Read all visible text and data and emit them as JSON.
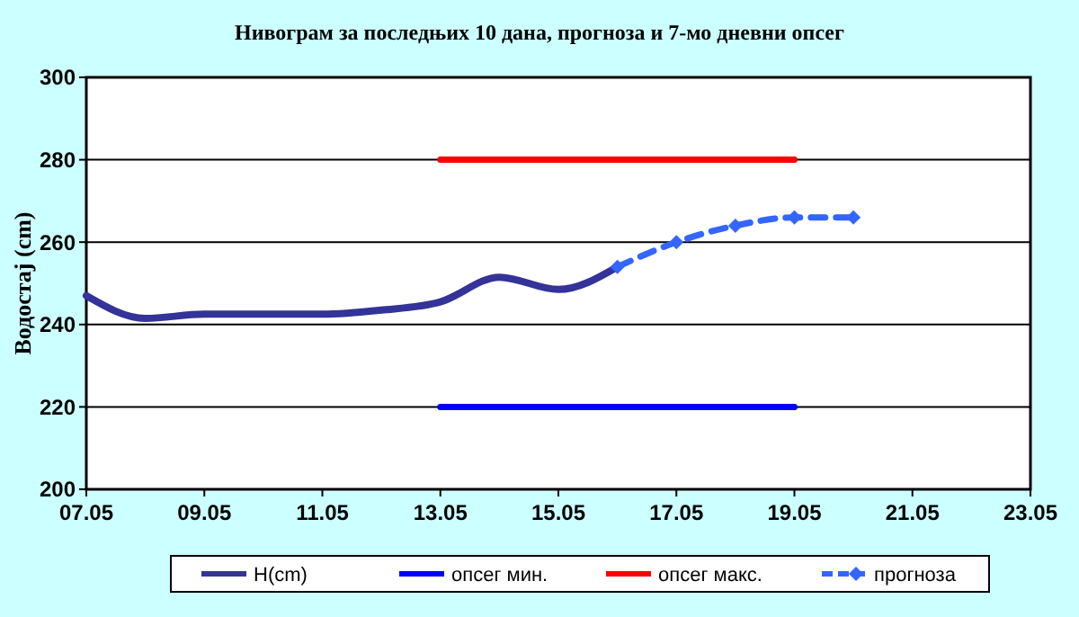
{
  "chart_data": {
    "type": "line",
    "title": "Нивограм за последњих 10 дана, прогноза и 7-мо дневни опсег",
    "ylabel": "Водостај (cm)",
    "xlim": [
      "--05-07",
      "--05-23"
    ],
    "xticks": [
      {
        "value": "--05-07",
        "label": "07.05"
      },
      {
        "value": "--05-09",
        "label": "09.05"
      },
      {
        "value": "--05-11",
        "label": "11.05"
      },
      {
        "value": "--05-13",
        "label": "13.05"
      },
      {
        "value": "--05-15",
        "label": "15.05"
      },
      {
        "value": "--05-17",
        "label": "17.05"
      },
      {
        "value": "--05-19",
        "label": "19.05"
      },
      {
        "value": "--05-21",
        "label": "21.05"
      },
      {
        "value": "--05-23",
        "label": "23.05"
      }
    ],
    "ylim": [
      200,
      300
    ],
    "yticks": [
      200,
      220,
      240,
      260,
      280,
      300
    ],
    "grid": "y",
    "legend": "bottom",
    "series": [
      {
        "name": "H(cm)",
        "color": "#333399",
        "x": [
          "--05-07",
          "--05-08",
          "--05-09",
          "--05-10",
          "--05-11",
          "--05-12",
          "--05-13",
          "--05-14",
          "--05-15",
          "--05-16"
        ],
        "values": [
          247,
          241.5,
          242.5,
          242.5,
          242.5,
          243.5,
          245.5,
          251.5,
          248.5,
          254
        ],
        "marker": "none",
        "line_style": "solid"
      },
      {
        "name": "опсег мин.",
        "color": "#0000ff",
        "x": [
          "--05-13",
          "--05-19"
        ],
        "values": [
          220,
          220
        ],
        "marker": "none",
        "line_style": "solid"
      },
      {
        "name": "опсег макс.",
        "color": "#ff0000",
        "x": [
          "--05-13",
          "--05-19"
        ],
        "values": [
          280,
          280
        ],
        "marker": "none",
        "line_style": "solid"
      },
      {
        "name": "прогноза",
        "color": "#3366ff",
        "x": [
          "--05-16",
          "--05-17",
          "--05-18",
          "--05-19",
          "--05-20"
        ],
        "values": [
          254,
          260,
          264,
          266,
          266
        ],
        "marker": "diamond",
        "line_style": "dashed"
      }
    ]
  }
}
